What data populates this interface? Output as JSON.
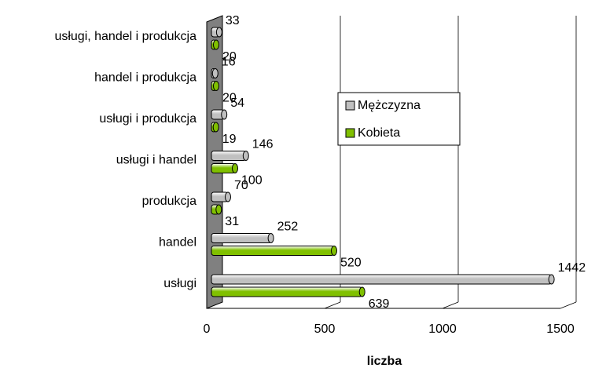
{
  "chart_data": {
    "type": "bar",
    "orientation": "horizontal",
    "x_label": "liczba",
    "categories": [
      "usługi, handel i produkcja",
      "handel i produkcja",
      "usługi i produkcja",
      "usługi i handel",
      "produkcja",
      "handel",
      "usługi"
    ],
    "series": [
      {
        "name": "Mężczyzna",
        "color": "#c0c0c0",
        "values": [
          33,
          16,
          54,
          146,
          70,
          252,
          1442
        ]
      },
      {
        "name": "Kobieta",
        "color": "#80c000",
        "values": [
          20,
          20,
          19,
          100,
          31,
          520,
          639
        ]
      }
    ],
    "xlim": [
      0,
      1500
    ],
    "xticks": [
      0,
      500,
      1000,
      1500
    ],
    "grid": true,
    "legend": "center"
  }
}
